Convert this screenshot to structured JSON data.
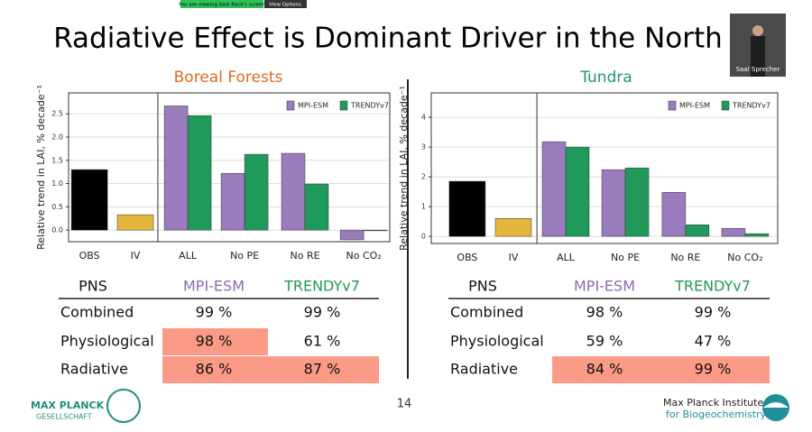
{
  "banner": {
    "notice": "You are viewing Saal Rack's screen",
    "button": "View Options"
  },
  "video": {
    "name": "Saal Sprecher"
  },
  "title": "Radiative Effect is Dominant Driver in the North",
  "chart_data": [
    {
      "type": "bar",
      "title": "Boreal Forests",
      "title_color": "#e06a1f",
      "ylabel": "Relative trend in LAI, % decade⁻¹",
      "categories": [
        "OBS",
        "IV",
        "ALL",
        "No PE",
        "No RE",
        "No CO₂"
      ],
      "observed": {
        "values": [
          1.3,
          0.33,
          null,
          null,
          null,
          null
        ],
        "colors": [
          "#000000",
          "#e3b63c",
          null,
          null,
          null,
          null
        ]
      },
      "series": [
        {
          "name": "MPI-ESM",
          "color": "#9a7bbd",
          "values": [
            null,
            null,
            2.67,
            1.22,
            1.65,
            -0.21
          ]
        },
        {
          "name": "TRENDYv7",
          "color": "#1f9a5a",
          "values": [
            null,
            null,
            2.46,
            1.63,
            0.99,
            -0.01
          ]
        }
      ],
      "ylim": [
        -0.25,
        2.95
      ],
      "yticks": [
        {
          "value": 0,
          "label": "0.0"
        },
        {
          "value": 0.5,
          "label": "0.5"
        },
        {
          "value": 1,
          "label": "1.0"
        },
        {
          "value": 1.5,
          "label": "1.5"
        },
        {
          "value": 2,
          "label": "2.0"
        },
        {
          "value": 2.5,
          "label": "2.5"
        }
      ],
      "grid": true,
      "legend": "upper right",
      "table": {
        "header": [
          "PNS",
          "MPI-ESM",
          "TRENDYv7"
        ],
        "rows": [
          [
            "Combined",
            "99 %",
            "99 %"
          ],
          [
            "Physiological",
            "98 %",
            "61 %"
          ],
          [
            "Radiative",
            "86 %",
            "87 %"
          ]
        ],
        "highlight": [
          [
            false,
            false,
            false
          ],
          [
            false,
            true,
            false
          ],
          [
            false,
            true,
            true
          ]
        ]
      }
    },
    {
      "type": "bar",
      "title": "Tundra",
      "title_color": "#1f9a6a",
      "ylabel": "Relative trend in LAI, % decade⁻¹",
      "categories": [
        "OBS",
        "IV",
        "ALL",
        "No PE",
        "No RE",
        "No CO₂"
      ],
      "observed": {
        "values": [
          1.85,
          0.6,
          null,
          null,
          null,
          null
        ],
        "colors": [
          "#000000",
          "#e3b63c",
          null,
          null,
          null,
          null
        ]
      },
      "series": [
        {
          "name": "MPI-ESM",
          "color": "#9a7bbd",
          "values": [
            null,
            null,
            3.18,
            2.24,
            1.48,
            0.27
          ]
        },
        {
          "name": "TRENDYv7",
          "color": "#1f9a5a",
          "values": [
            null,
            null,
            3.0,
            2.3,
            0.39,
            0.09
          ]
        }
      ],
      "ylim": [
        -0.24,
        4.82
      ],
      "yticks": [
        0,
        1,
        2,
        3,
        4
      ],
      "grid": true,
      "legend": "upper right",
      "table": {
        "header": [
          "PNS",
          "MPI-ESM",
          "TRENDYv7"
        ],
        "rows": [
          [
            "Combined",
            "98 %",
            "99 %"
          ],
          [
            "Physiological",
            "59 %",
            "47 %"
          ],
          [
            "Radiative",
            "84 %",
            "99 %"
          ]
        ],
        "highlight": [
          [
            false,
            false,
            false
          ],
          [
            false,
            false,
            false
          ],
          [
            false,
            true,
            true
          ]
        ]
      }
    }
  ],
  "footer": {
    "page": "14",
    "logo_left": [
      "MAX PLANCK",
      "GESELLSCHAFT"
    ],
    "institute": "Max Planck Institute",
    "department": "for Biogeochemistry"
  }
}
